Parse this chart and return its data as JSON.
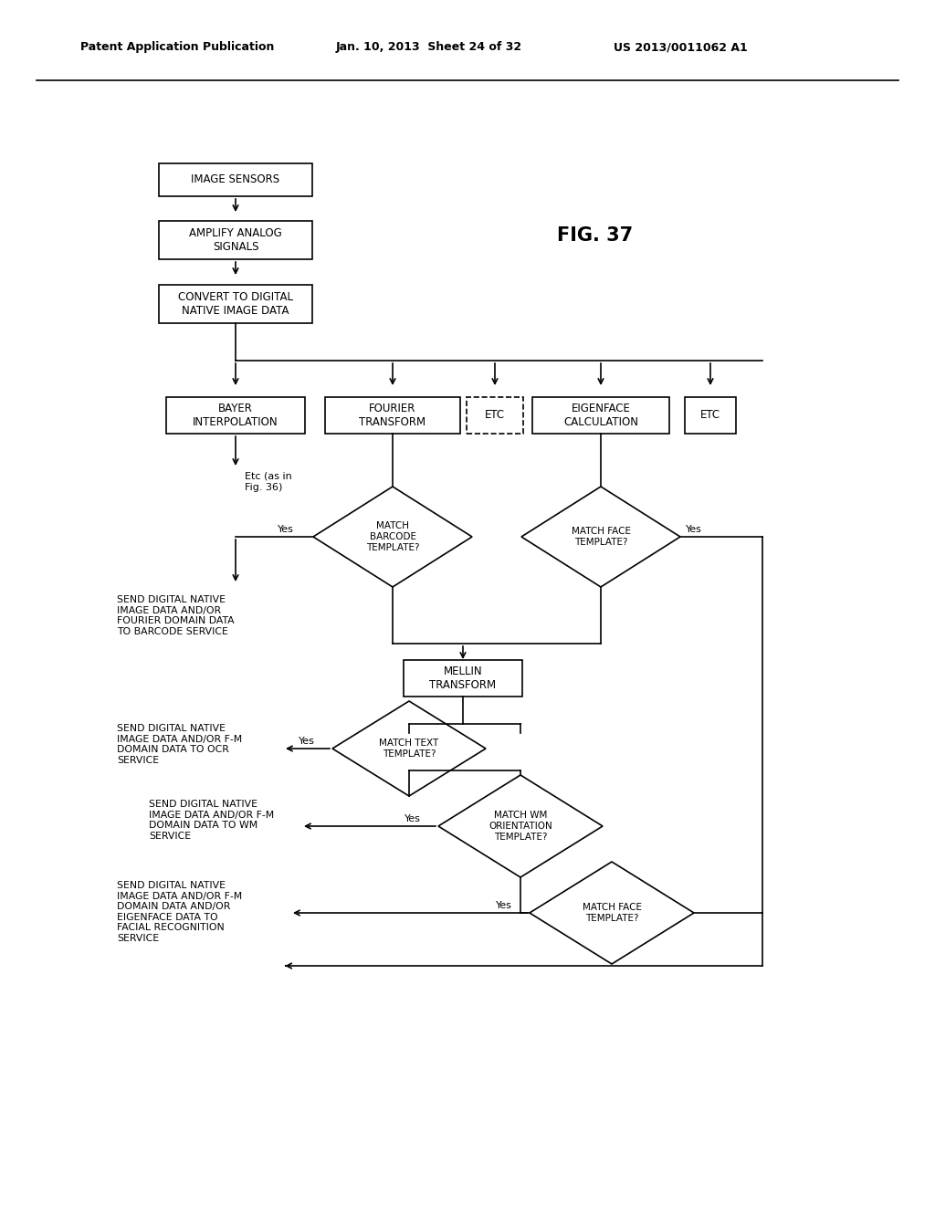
{
  "header_left": "Patent Application Publication",
  "header_center": "Jan. 10, 2013  Sheet 24 of 32",
  "header_right": "US 2013/0011062 A1",
  "fig_label": "FIG. 37",
  "bg_color": "#ffffff"
}
